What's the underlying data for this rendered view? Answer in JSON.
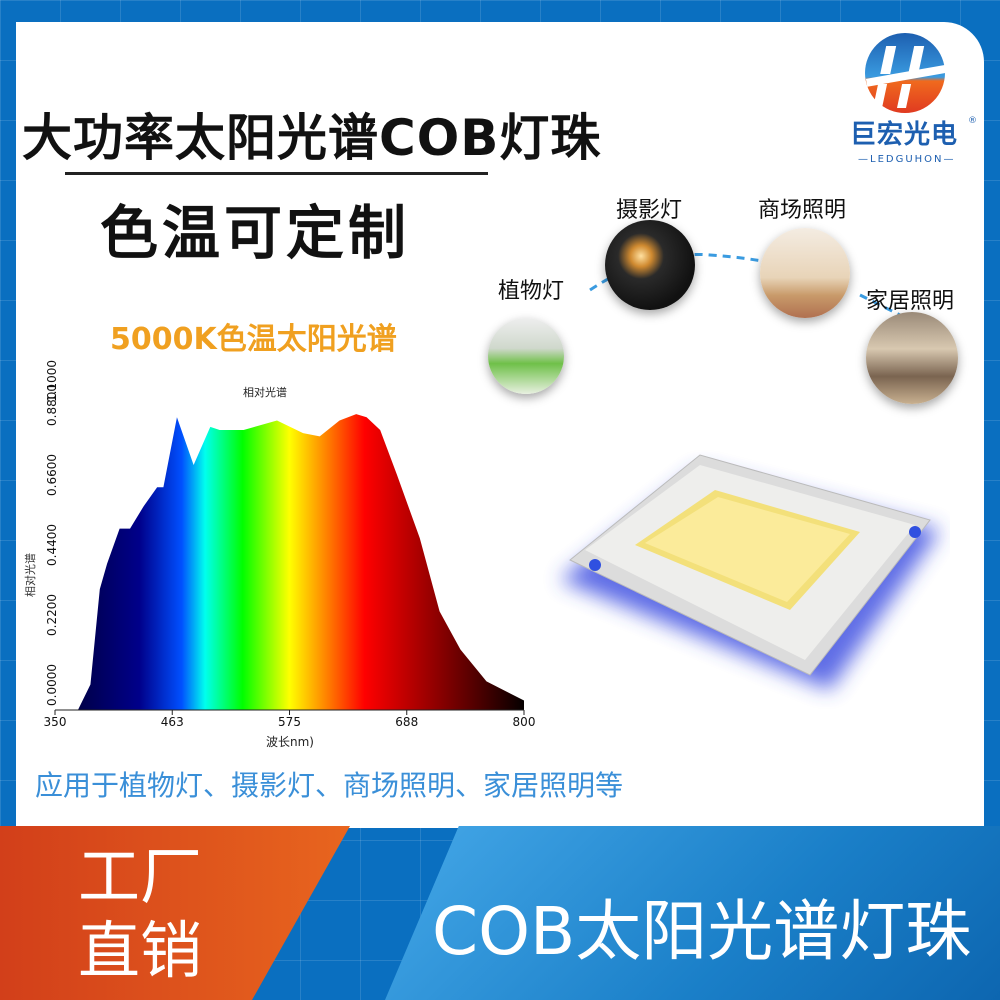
{
  "headline": "大功率太阳光谱COB灯珠",
  "subheadline": "色温可定制",
  "spectrum_caption": "5000K色温太阳光谱",
  "applications_text": "应用于植物灯、摄影灯、商场照明、家居照明等",
  "logo": {
    "name_cn": "巨宏光电",
    "name_en": "LEDGUHON",
    "mark": "®"
  },
  "applications": [
    {
      "label": "植物灯"
    },
    {
      "label": "摄影灯"
    },
    {
      "label": "商场照明"
    },
    {
      "label": "家居照明"
    }
  ],
  "banner": {
    "left": "工厂直销",
    "right": "COB太阳光谱灯珠"
  },
  "colors": {
    "border_blue": "#0a6fc0",
    "orange": "#e8651e",
    "caption_orange": "#f0a020",
    "text_blue": "#3a8fd8"
  },
  "chart_data": {
    "type": "area",
    "title": "相对光谱",
    "xlabel": "波长nm)",
    "ylabel": "相对光谱",
    "xlim": [
      350,
      800
    ],
    "ylim": [
      0,
      1.1
    ],
    "x_ticks": [
      "350",
      "463",
      "575",
      "688",
      "800"
    ],
    "y_ticks": [
      "0.0000",
      "0.2200",
      "0.4400",
      "0.6600",
      "0.8800",
      "1.1000"
    ],
    "fill": "visible-spectrum gradient",
    "x": [
      350,
      372,
      384,
      393,
      400,
      412,
      422,
      435,
      448,
      454,
      467,
      483,
      499,
      508,
      531,
      563,
      588,
      604,
      623,
      639,
      649,
      662,
      678,
      700,
      719,
      739,
      764,
      800
    ],
    "y": [
      0,
      0,
      0.08,
      0.38,
      0.46,
      0.57,
      0.57,
      0.64,
      0.7,
      0.7,
      0.92,
      0.77,
      0.89,
      0.88,
      0.88,
      0.91,
      0.87,
      0.86,
      0.91,
      0.93,
      0.92,
      0.88,
      0.74,
      0.54,
      0.31,
      0.19,
      0.09,
      0.03
    ]
  }
}
